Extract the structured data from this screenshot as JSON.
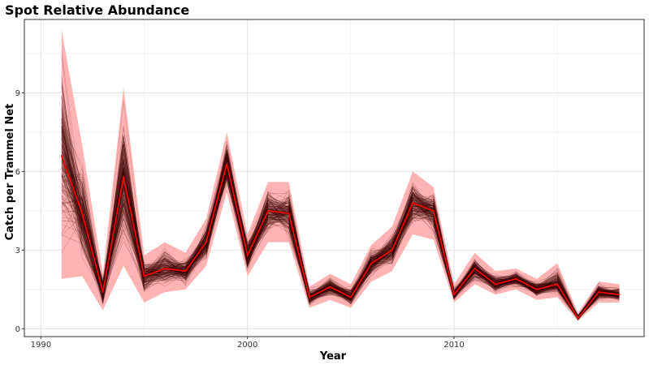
{
  "chart_data": {
    "type": "line",
    "title": "Spot Relative Abundance",
    "xlabel": "Year",
    "ylabel": "Catch per Trammel Net",
    "xlim": [
      1989.2,
      2019.2
    ],
    "ylim": [
      -0.3,
      11.8
    ],
    "x_ticks": [
      1990,
      2000,
      2010
    ],
    "y_ticks": [
      0,
      3,
      6,
      9
    ],
    "grid": true,
    "legend": "none",
    "colors": {
      "mean_line": "#ff0000",
      "interval_band": "#ffb3b3",
      "replicate_lines": "#3a0000",
      "panel_border": "#333333"
    },
    "series": [
      {
        "x": [
          1991,
          1992,
          1993,
          1994,
          1995,
          1996,
          1997,
          1998,
          1999,
          2000,
          2001,
          2002,
          2003,
          2004,
          2005,
          2006,
          2007,
          2008,
          2009,
          2010,
          2011,
          2012,
          2013,
          2014,
          2015,
          2016,
          2017,
          2018
        ],
        "mean": [
          6.6,
          4.4,
          1.4,
          5.8,
          2.0,
          2.3,
          2.2,
          3.3,
          6.3,
          2.8,
          4.5,
          4.4,
          1.2,
          1.6,
          1.2,
          2.5,
          3.0,
          4.8,
          4.5,
          1.3,
          2.3,
          1.7,
          1.9,
          1.5,
          1.7,
          0.4,
          1.4,
          1.3
        ],
        "lower": [
          1.9,
          2.0,
          0.7,
          2.4,
          1.0,
          1.4,
          1.5,
          2.4,
          5.2,
          2.0,
          3.3,
          3.3,
          0.8,
          1.1,
          0.8,
          1.8,
          2.2,
          3.6,
          3.4,
          1.0,
          1.7,
          1.3,
          1.5,
          1.1,
          1.2,
          0.3,
          1.0,
          1.0
        ],
        "upper": [
          11.4,
          7.0,
          2.1,
          9.2,
          2.8,
          3.3,
          2.9,
          4.2,
          7.5,
          3.6,
          5.6,
          5.6,
          1.6,
          2.1,
          1.7,
          3.2,
          3.9,
          6.0,
          5.4,
          1.7,
          2.9,
          2.2,
          2.3,
          1.9,
          2.5,
          0.6,
          1.8,
          1.7
        ]
      }
    ]
  }
}
